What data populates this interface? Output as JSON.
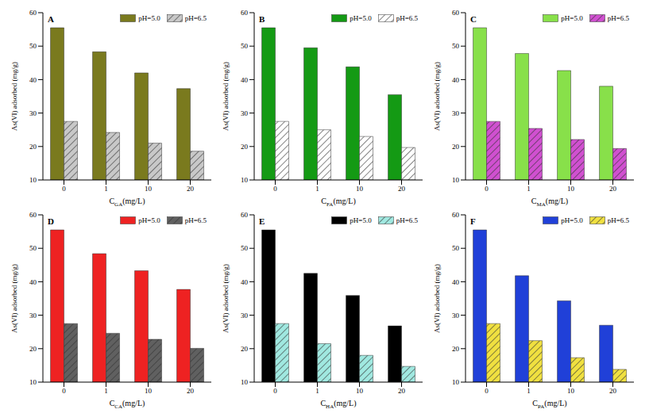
{
  "chart_data": [
    {
      "type": "bar",
      "label": "A",
      "x_label": "CGA(mg/L)",
      "y_label": "As(VI) adsorbed (mg/g)",
      "categories": [
        "0",
        "1",
        "10",
        "20"
      ],
      "ylim": [
        10,
        60
      ],
      "yticks": [
        10,
        20,
        30,
        40,
        50,
        60
      ],
      "legend": "upper right",
      "series": [
        {
          "name": "pH=5.0",
          "color": "#7a7a1e",
          "values": [
            55.5,
            48.3,
            42.0,
            37.3
          ]
        },
        {
          "name": "pH=6.5",
          "color": "#c8c8c8",
          "values": [
            27.5,
            24.2,
            21.0,
            18.6
          ]
        }
      ]
    },
    {
      "type": "bar",
      "label": "B",
      "x_label": "CFA(mg/L)",
      "y_label": "As(VI) adsorbed (mg/g)",
      "categories": [
        "0",
        "1",
        "10",
        "20"
      ],
      "ylim": [
        10,
        60
      ],
      "yticks": [
        10,
        20,
        30,
        40,
        50,
        60
      ],
      "legend": "upper right",
      "series": [
        {
          "name": "pH=5.0",
          "color": "#149a14",
          "values": [
            55.5,
            49.5,
            43.8,
            35.5
          ]
        },
        {
          "name": "pH=6.5",
          "color": "#ffffff",
          "values": [
            27.5,
            25.0,
            23.0,
            19.7
          ]
        }
      ]
    },
    {
      "type": "bar",
      "label": "C",
      "x_label": "CMA(mg/L)",
      "y_label": "As(VI) adsorbed (mg/g)",
      "categories": [
        "0",
        "1",
        "10",
        "20"
      ],
      "ylim": [
        10,
        60
      ],
      "yticks": [
        10,
        20,
        30,
        40,
        50,
        60
      ],
      "legend": "upper right",
      "series": [
        {
          "name": "pH=5.0",
          "color": "#88e04a",
          "values": [
            55.5,
            47.8,
            42.7,
            38.0
          ]
        },
        {
          "name": "pH=6.5",
          "color": "#d050d0",
          "values": [
            27.5,
            25.4,
            22.1,
            19.4
          ]
        }
      ]
    },
    {
      "type": "bar",
      "label": "D",
      "x_label": "CCA(mg/L)",
      "y_label": "As(VI) adsorbed (mg/g)",
      "categories": [
        "0",
        "1",
        "10",
        "20"
      ],
      "ylim": [
        10,
        60
      ],
      "yticks": [
        10,
        20,
        30,
        40,
        50,
        60
      ],
      "legend": "upper right",
      "series": [
        {
          "name": "pH=5.0",
          "color": "#ee2222",
          "values": [
            55.5,
            48.4,
            43.3,
            37.7
          ]
        },
        {
          "name": "pH=6.5",
          "color": "#606060",
          "values": [
            27.5,
            24.6,
            22.8,
            20.1
          ]
        }
      ]
    },
    {
      "type": "bar",
      "label": "E",
      "x_label": "CHA(mg/L)",
      "y_label": "As(VI) adsorbed (mg/g)",
      "categories": [
        "0",
        "1",
        "10",
        "20"
      ],
      "ylim": [
        10,
        60
      ],
      "yticks": [
        10,
        20,
        30,
        40,
        50,
        60
      ],
      "legend": "upper right",
      "series": [
        {
          "name": "pH=5.0",
          "color": "#000000",
          "values": [
            55.5,
            42.5,
            35.9,
            26.8
          ]
        },
        {
          "name": "pH=6.5",
          "color": "#a0e8e0",
          "values": [
            27.5,
            21.5,
            18.0,
            14.7
          ]
        }
      ]
    },
    {
      "type": "bar",
      "label": "F",
      "x_label": "CPA(mg/L)",
      "y_label": "As(VI) adsorbed (mg/g)",
      "categories": [
        "0",
        "1",
        "10",
        "20"
      ],
      "ylim": [
        10,
        60
      ],
      "yticks": [
        10,
        20,
        30,
        40,
        50,
        60
      ],
      "legend": "upper right",
      "series": [
        {
          "name": "pH=5.0",
          "color": "#2040d8",
          "values": [
            55.5,
            41.8,
            34.3,
            27.0
          ]
        },
        {
          "name": "pH=6.5",
          "color": "#f0e040",
          "values": [
            27.5,
            22.4,
            17.3,
            13.8
          ]
        }
      ]
    }
  ]
}
